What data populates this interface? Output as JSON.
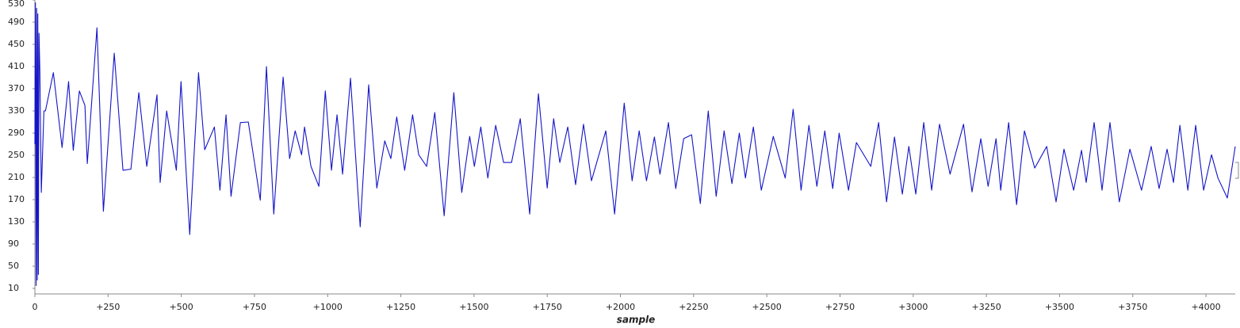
{
  "chart_data": {
    "type": "line",
    "x_label": "sample",
    "color": "#1414c8",
    "xlim": [
      0,
      4100
    ],
    "ylim": [
      0,
      530
    ],
    "yticks": [
      10,
      50,
      90,
      130,
      170,
      210,
      250,
      290,
      330,
      370,
      410,
      450,
      490,
      530
    ],
    "xticks": [
      0,
      {
        "value": 250,
        "label": "+250"
      },
      {
        "value": 500,
        "label": "+500"
      },
      {
        "value": 750,
        "label": "+750"
      },
      {
        "value": 1000,
        "label": "+1000"
      },
      {
        "value": 1250,
        "label": "+1250"
      },
      {
        "value": 1500,
        "label": "+1500"
      },
      {
        "value": 1750,
        "label": "+1750"
      },
      {
        "value": 2000,
        "label": "+2000"
      },
      {
        "value": 2250,
        "label": "+2250"
      },
      {
        "value": 2500,
        "label": "+2500"
      },
      {
        "value": 2750,
        "label": "+2750"
      },
      {
        "value": 3000,
        "label": "+3000"
      },
      {
        "value": 3250,
        "label": "+3250"
      },
      {
        "value": 3500,
        "label": "+3500"
      },
      {
        "value": 3750,
        "label": "+3750"
      },
      {
        "value": 4000,
        "label": "+4000"
      }
    ],
    "x": [
      0,
      2,
      4,
      6,
      8,
      10,
      12,
      14,
      17,
      22,
      31,
      36,
      63,
      93,
      115,
      131,
      152,
      171,
      179,
      212,
      234,
      271,
      301,
      328,
      355,
      382,
      417,
      428,
      450,
      483,
      499,
      529,
      559,
      580,
      613,
      632,
      653,
      670,
      702,
      729,
      748,
      770,
      791,
      816,
      848,
      870,
      889,
      911,
      921,
      943,
      970,
      992,
      1013,
      1032,
      1051,
      1078,
      1111,
      1140,
      1168,
      1195,
      1216,
      1236,
      1263,
      1290,
      1311,
      1338,
      1366,
      1398,
      1431,
      1458,
      1485,
      1501,
      1523,
      1547,
      1574,
      1601,
      1628,
      1658,
      1690,
      1720,
      1750,
      1772,
      1793,
      1820,
      1847,
      1874,
      1901,
      1950,
      1980,
      2013,
      2040,
      2064,
      2089,
      2116,
      2135,
      2164,
      2189,
      2216,
      2243,
      2273,
      2300,
      2327,
      2354,
      2381,
      2406,
      2427,
      2454,
      2481,
      2522,
      2563,
      2590,
      2617,
      2644,
      2671,
      2698,
      2725,
      2747,
      2779,
      2806,
      2855,
      2882,
      2909,
      2936,
      2963,
      2985,
      3009,
      3036,
      3063,
      3090,
      3126,
      3172,
      3201,
      3231,
      3256,
      3283,
      3299,
      3326,
      3353,
      3380,
      3415,
      3456,
      3488,
      3515,
      3548,
      3575,
      3591,
      3618,
      3645,
      3672,
      3704,
      3740,
      3780,
      3813,
      3840,
      3867,
      3889,
      3911,
      3938,
      3965,
      3992,
      4019,
      4041,
      4073,
      4100
    ],
    "values": [
      270,
      525,
      15,
      515,
      25,
      505,
      35,
      470,
      400,
      183,
      330,
      330,
      399,
      264,
      383,
      259,
      366,
      340,
      235,
      480,
      149,
      434,
      223,
      225,
      363,
      230,
      359,
      201,
      330,
      223,
      383,
      107,
      399,
      260,
      301,
      187,
      323,
      176,
      309,
      310,
      244,
      169,
      410,
      144,
      391,
      244,
      294,
      251,
      301,
      230,
      194,
      366,
      223,
      323,
      216,
      389,
      121,
      377,
      191,
      276,
      244,
      319,
      223,
      323,
      251,
      230,
      327,
      141,
      363,
      183,
      284,
      230,
      301,
      209,
      304,
      237,
      237,
      316,
      144,
      361,
      191,
      316,
      237,
      301,
      197,
      306,
      204,
      294,
      144,
      344,
      204,
      294,
      204,
      283,
      216,
      309,
      190,
      280,
      287,
      163,
      330,
      176,
      294,
      199,
      290,
      209,
      301,
      187,
      284,
      209,
      333,
      187,
      304,
      194,
      294,
      190,
      290,
      187,
      273,
      230,
      309,
      166,
      283,
      180,
      266,
      180,
      309,
      187,
      306,
      216,
      306,
      184,
      280,
      194,
      280,
      187,
      309,
      161,
      294,
      227,
      266,
      166,
      261,
      187,
      259,
      201,
      309,
      187,
      309,
      166,
      261,
      187,
      266,
      190,
      261,
      201,
      304,
      187,
      304,
      187,
      251,
      209,
      173,
      266
    ]
  }
}
